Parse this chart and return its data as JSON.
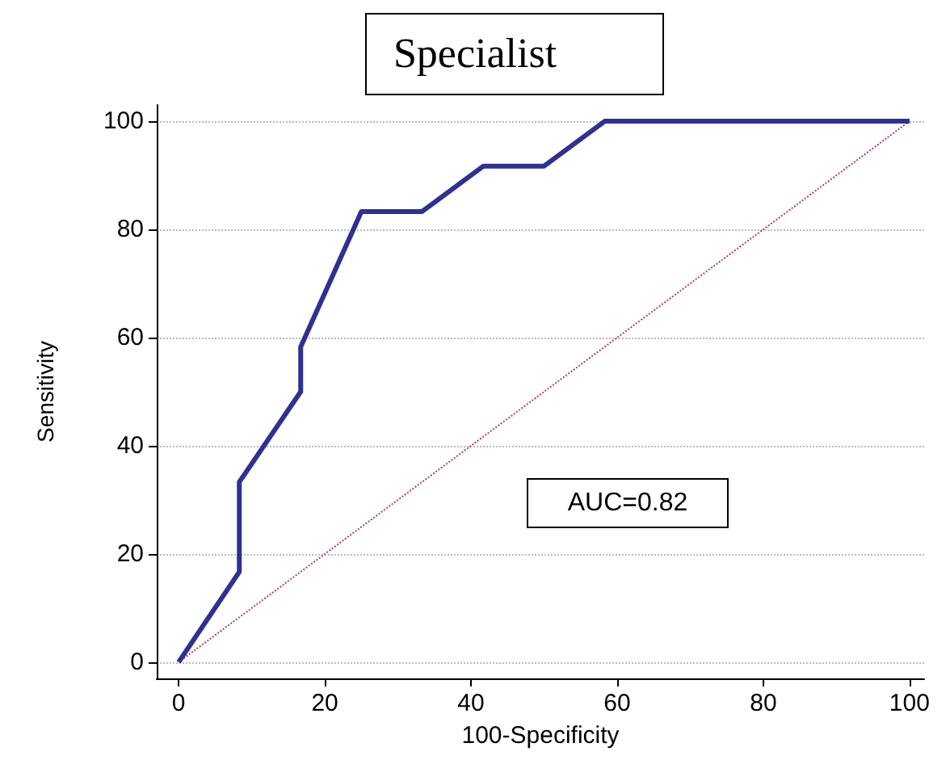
{
  "chart_data": {
    "type": "line",
    "title": "Specialist",
    "xlabel": "100-Specificity",
    "ylabel": "Sensitivity",
    "xlim": [
      -3,
      102
    ],
    "xticks": [
      0,
      20,
      40,
      60,
      80,
      100
    ],
    "ylim": [
      -3,
      103
    ],
    "yticks": [
      0,
      20,
      40,
      60,
      80,
      100
    ],
    "grid": "y",
    "marker": "none",
    "annotations": [
      "AUC=0.82"
    ],
    "series": [
      {
        "color": "#2e3192",
        "line_style": "solid",
        "x": [
          0,
          8.3,
          8.3,
          16.7,
          16.7,
          25,
          33.3,
          41.7,
          50,
          58.3,
          100
        ],
        "values": [
          0,
          16.7,
          33.3,
          50,
          58.3,
          83.3,
          83.3,
          91.7,
          91.7,
          100,
          100
        ]
      },
      {
        "color": "#b0405a",
        "line_style": "dotted",
        "x": [
          0,
          100
        ],
        "values": [
          0,
          100
        ]
      }
    ]
  }
}
